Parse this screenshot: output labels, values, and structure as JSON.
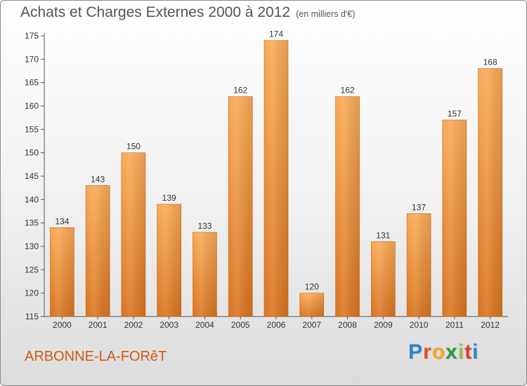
{
  "title": "Achats et Charges Externes 2000 à 2012",
  "subtitle": "(en milliers d'€)",
  "commune": "ARBONNE-LA-FORêT",
  "logo": {
    "letters": [
      "P",
      "r",
      "o",
      "x",
      "i",
      "t",
      "i"
    ],
    "colors": [
      "#2a86c8",
      "#e94e1b",
      "#f7a81b",
      "#2a9a3c",
      "#8cc63f",
      "#e63c2f",
      "#2a86c8"
    ]
  },
  "colors": {
    "bar_top": "#f9aa55",
    "bar_bottom": "#d8731f",
    "bar_edge": "#c0641a"
  },
  "chart_data": {
    "type": "bar",
    "title": "Achats et Charges Externes 2000 à 2012",
    "subtitle": "(en milliers d'€)",
    "categories": [
      "2000",
      "2001",
      "2002",
      "2003",
      "2004",
      "2005",
      "2006",
      "2007",
      "2008",
      "2009",
      "2010",
      "2011",
      "2012"
    ],
    "values": [
      134,
      143,
      150,
      139,
      133,
      162,
      174,
      120,
      162,
      131,
      137,
      157,
      168
    ],
    "ylim": [
      115,
      175
    ],
    "yticks": [
      115,
      120,
      125,
      130,
      135,
      140,
      145,
      150,
      155,
      160,
      165,
      170,
      175
    ],
    "grid": false,
    "xlabel": "",
    "ylabel": ""
  }
}
